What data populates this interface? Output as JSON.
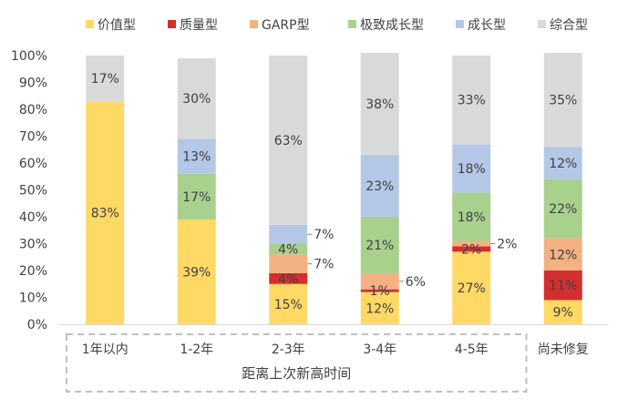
{
  "chart_data": {
    "type": "bar",
    "stacked": true,
    "categories": [
      "1年以内",
      "1-2年",
      "2-3年",
      "3-4年",
      "4-5年",
      "尚未修复"
    ],
    "group_label": "距离上次新高时间",
    "group_members": [
      "1年以内",
      "1-2年",
      "2-3年",
      "3-4年",
      "4-5年"
    ],
    "ylim": [
      0,
      100
    ],
    "yticks": [
      "0%",
      "10%",
      "20%",
      "30%",
      "40%",
      "50%",
      "60%",
      "70%",
      "80%",
      "90%",
      "100%"
    ],
    "legend_position": "top",
    "grid": false,
    "series": [
      {
        "name": "价值型",
        "color": "#FFD966",
        "values": [
          83,
          39,
          15,
          12,
          27,
          9
        ]
      },
      {
        "name": "质量型",
        "color": "#D32F2F",
        "values": [
          0,
          0,
          4,
          1,
          2,
          11
        ]
      },
      {
        "name": "GARP型",
        "color": "#F4B183",
        "values": [
          0,
          0,
          7,
          6,
          2,
          12
        ]
      },
      {
        "name": "极致成长型",
        "color": "#A9D18E",
        "values": [
          0,
          17,
          4,
          21,
          18,
          22
        ]
      },
      {
        "name": "成长型",
        "color": "#B4C7E7",
        "values": [
          0,
          13,
          7,
          23,
          18,
          12
        ]
      },
      {
        "name": "综合型",
        "color": "#D9D9D9",
        "values": [
          17,
          30,
          63,
          38,
          33,
          35
        ]
      }
    ]
  }
}
